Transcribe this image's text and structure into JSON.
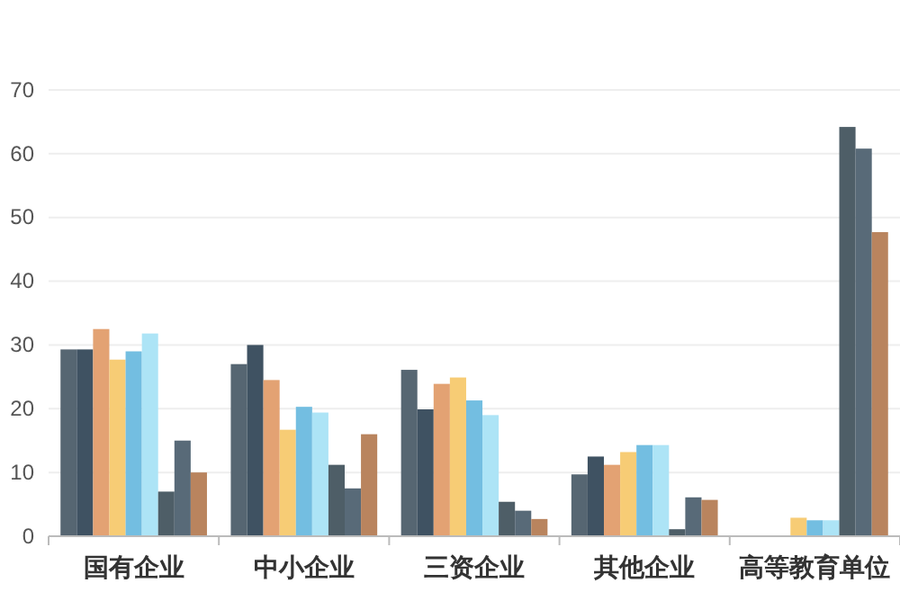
{
  "chart_data": {
    "type": "bar",
    "categories": [
      "国有企业",
      "中小企业",
      "三资企业",
      "其他企业",
      "高等教育单位"
    ],
    "series": [
      {
        "color": "#4d5e6a",
        "values": [
          29.3,
          27,
          26.1,
          9.7,
          0
        ]
      },
      {
        "color": "#35495a",
        "values": [
          29.3,
          30,
          19.9,
          12.5,
          0
        ]
      },
      {
        "color": "#e29d6c",
        "values": [
          32.5,
          24.5,
          23.9,
          11.2,
          0
        ]
      },
      {
        "color": "#f7c96e",
        "values": [
          27.7,
          16.7,
          24.9,
          13.2,
          2.9
        ]
      },
      {
        "color": "#6bbadf",
        "values": [
          29,
          20.3,
          21.3,
          14.3,
          2.5
        ]
      },
      {
        "color": "#a9e3f5",
        "values": [
          31.8,
          19.4,
          19,
          14.3,
          2.5
        ]
      },
      {
        "color": "#44555f",
        "values": [
          7,
          11.2,
          5.4,
          1.1,
          64.2
        ]
      },
      {
        "color": "#4f6271",
        "values": [
          15,
          7.5,
          4,
          6.1,
          60.8
        ]
      },
      {
        "color": "#b57d55",
        "values": [
          10,
          16,
          2.7,
          5.7,
          47.7
        ]
      }
    ],
    "ylim": [
      0,
      70
    ],
    "yticks": [
      0,
      10,
      20,
      30,
      40,
      50,
      60,
      70
    ],
    "grid": "y"
  }
}
